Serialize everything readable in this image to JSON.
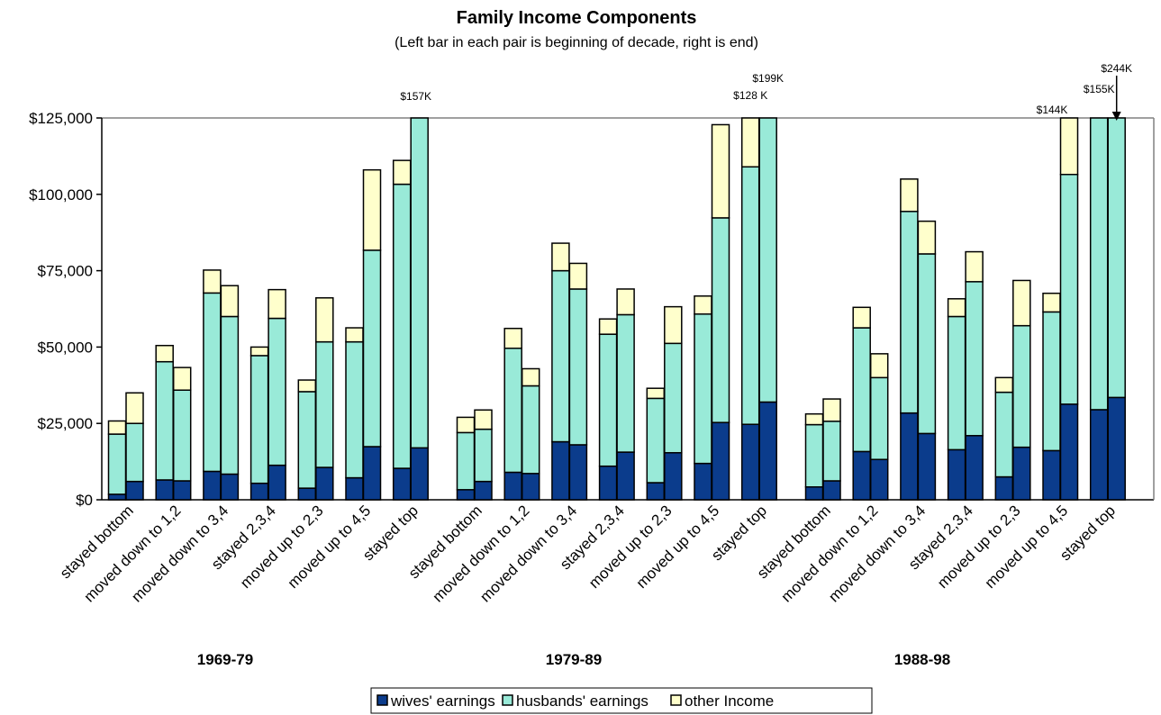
{
  "chart_data": {
    "type": "bar",
    "stacked": true,
    "title": "Family Income Components",
    "subtitle": "(Left bar in each pair is beginning of decade, right is end)",
    "ylim": [
      0,
      125000
    ],
    "yticks": [
      0,
      25000,
      50000,
      75000,
      100000,
      125000
    ],
    "ytick_labels": [
      "$0",
      "$25,000",
      "$50,000",
      "$75,000",
      "$100,000",
      "$125,000"
    ],
    "grid": false,
    "legend_position": "bottom-center",
    "series": [
      {
        "name": "wives' earnings",
        "color": "#0b3c8c"
      },
      {
        "name": "husbands' earnings",
        "color": "#99ead8"
      },
      {
        "name": "other Income",
        "color": "#ffffcc"
      }
    ],
    "groups": [
      {
        "label": "1969-79",
        "categories": [
          {
            "label": "stayed bottom",
            "bars": [
              [
                1800,
                19700,
                4300
              ],
              [
                6000,
                19000,
                10000
              ]
            ]
          },
          {
            "label": "moved down to 1,2",
            "bars": [
              [
                6500,
                38700,
                5300
              ],
              [
                6200,
                29700,
                7400
              ]
            ]
          },
          {
            "label": "moved down to 3,4",
            "bars": [
              [
                9300,
                58400,
                7500
              ],
              [
                8400,
                51600,
                10100
              ]
            ]
          },
          {
            "label": "stayed 2,3,4",
            "bars": [
              [
                5400,
                41800,
                2800
              ],
              [
                11300,
                48100,
                9400
              ]
            ]
          },
          {
            "label": "moved up to 2,3",
            "bars": [
              [
                3800,
                31600,
                3800
              ],
              [
                10600,
                41100,
                14400
              ]
            ]
          },
          {
            "label": "moved up to 4,5",
            "bars": [
              [
                7200,
                44500,
                4600
              ],
              [
                17400,
                64300,
                26300
              ]
            ]
          },
          {
            "label": "stayed top",
            "bars": [
              [
                10300,
                93000,
                7800
              ],
              [
                17000,
                140000,
                0
              ]
            ]
          }
        ]
      },
      {
        "label": "1979-89",
        "categories": [
          {
            "label": "stayed bottom",
            "bars": [
              [
                3300,
                18700,
                5000
              ],
              [
                6000,
                17100,
                6300
              ]
            ]
          },
          {
            "label": "moved down to 1,2",
            "bars": [
              [
                9000,
                40600,
                6500
              ],
              [
                8600,
                28700,
                5600
              ]
            ]
          },
          {
            "label": "moved down to 3,4",
            "bars": [
              [
                19000,
                56000,
                9000
              ],
              [
                18000,
                51000,
                8400
              ]
            ]
          },
          {
            "label": "stayed 2,3,4",
            "bars": [
              [
                11000,
                43200,
                5000
              ],
              [
                15600,
                45000,
                8400
              ]
            ]
          },
          {
            "label": "moved up to 2,3",
            "bars": [
              [
                5600,
                27600,
                3300
              ],
              [
                15400,
                35800,
                12000
              ]
            ]
          },
          {
            "label": "moved up to 4,5",
            "bars": [
              [
                11900,
                48900,
                5900
              ],
              [
                25300,
                67000,
                30500
              ]
            ]
          },
          {
            "label": "stayed top",
            "bars": [
              [
                24700,
                84300,
                19000
              ],
              [
                32000,
                167000,
                0
              ]
            ]
          }
        ]
      },
      {
        "label": "1988-98",
        "categories": [
          {
            "label": "stayed bottom",
            "bars": [
              [
                4200,
                20400,
                3500
              ],
              [
                6200,
                19500,
                7300
              ]
            ]
          },
          {
            "label": "moved down to 1,2",
            "bars": [
              [
                15800,
                40500,
                6700
              ],
              [
                13200,
                26800,
                7800
              ]
            ]
          },
          {
            "label": "moved down to 3,4",
            "bars": [
              [
                28400,
                66000,
                10600
              ],
              [
                21700,
                58800,
                10700
              ]
            ]
          },
          {
            "label": "stayed 2,3,4",
            "bars": [
              [
                16400,
                43600,
                5800
              ],
              [
                21000,
                50400,
                9800
              ]
            ]
          },
          {
            "label": "moved up to 2,3",
            "bars": [
              [
                7500,
                27700,
                4800
              ],
              [
                17200,
                39800,
                14800
              ]
            ]
          },
          {
            "label": "moved up to 4,5",
            "bars": [
              [
                16100,
                45400,
                6100
              ],
              [
                31300,
                75200,
                37500
              ]
            ]
          },
          {
            "label": "stayed top",
            "bars": [
              [
                29500,
                125500,
                0
              ],
              [
                33500,
                210500,
                0
              ]
            ]
          }
        ]
      }
    ],
    "annotations": [
      {
        "text": "$157K",
        "group": 0,
        "category": 6,
        "bar": 1
      },
      {
        "text": "$199K",
        "group": 1,
        "category": 6,
        "bar": 1
      },
      {
        "text": "$128 K",
        "group": 1,
        "category": 6,
        "bar": 0
      },
      {
        "text": "$144K",
        "group": 2,
        "category": 5,
        "bar": 1
      },
      {
        "text": "$155K",
        "group": 2,
        "category": 6,
        "bar": 0
      },
      {
        "text": "$244K",
        "group": 2,
        "category": 6,
        "bar": 1
      }
    ]
  }
}
